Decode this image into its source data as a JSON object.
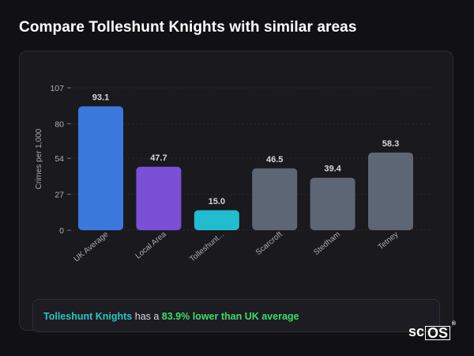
{
  "page": {
    "title": "Compare Tolleshunt Knights with similar areas"
  },
  "colors": {
    "uk_average": "#3b78dc",
    "local_area": "#7b4fd6",
    "tolleshunt": "#22bcd0",
    "neighbour": "#5d6675",
    "highlight_text": "#2cc4c4",
    "delta_text": "#3ddc6a"
  },
  "chart_data": {
    "type": "bar",
    "categories": [
      "UK Average",
      "Local Area",
      "Tolleshunt...",
      "Scarcroft",
      "Stedham",
      "Tetney"
    ],
    "values": [
      93.1,
      47.7,
      15.0,
      46.5,
      39.4,
      58.3
    ],
    "value_labels": [
      "93.1",
      "47.7",
      "15.0",
      "46.5",
      "39.4",
      "58.3"
    ],
    "bar_colors": [
      "#3b78dc",
      "#7b4fd6",
      "#22bcd0",
      "#5d6675",
      "#5d6675",
      "#5d6675"
    ],
    "ylabel": "Crimes per 1,000",
    "yticks": [
      0,
      27,
      54,
      80,
      107
    ],
    "ylim": [
      0,
      107
    ],
    "grid": true
  },
  "summary": {
    "place": "Tolleshunt Knights",
    "connector": " has a ",
    "delta": "83.9% lower than UK average"
  },
  "logo": {
    "prefix": "sc",
    "boxed": "OS",
    "mark": "®"
  }
}
